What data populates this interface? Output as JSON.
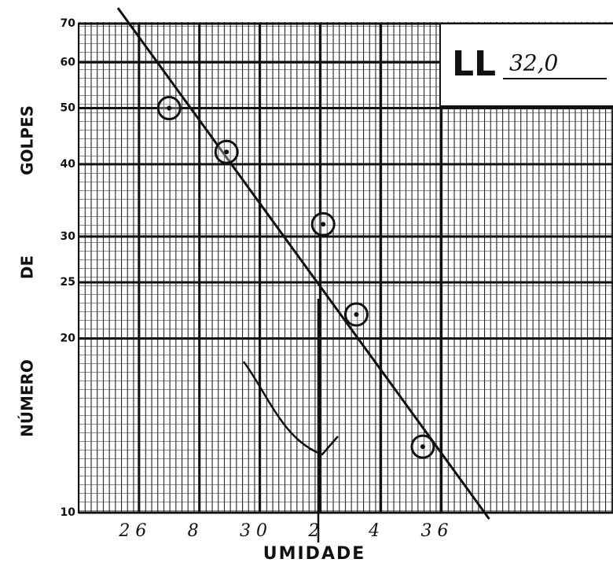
{
  "chart_data": {
    "type": "scatter",
    "xlabel": "UMIDADE",
    "ylabel": "NÚMERO DE GOLPES",
    "annotation_label": "LL",
    "annotation_value": "32,0",
    "log_y": true,
    "color": "#111111",
    "xlim": [
      24,
      41.7
    ],
    "ylim": [
      10,
      70
    ],
    "xticks": [
      {
        "value": 26,
        "label": "2 6"
      },
      {
        "value": 28,
        "label": "8"
      },
      {
        "value": 30,
        "label": "3 0"
      },
      {
        "value": 32,
        "label": "2"
      },
      {
        "value": 34,
        "label": "4"
      },
      {
        "value": 36,
        "label": "3 6"
      }
    ],
    "yticks": [
      10,
      20,
      25,
      30,
      40,
      50,
      60,
      70
    ],
    "series": [
      {
        "x": [
          27.0,
          28.9,
          32.1,
          33.2,
          35.4
        ],
        "y": [
          50,
          42,
          31.5,
          22,
          13
        ]
      }
    ],
    "fit_line": {
      "x": [
        25.3,
        37.6
      ],
      "y": [
        74.5,
        9.75
      ]
    }
  }
}
